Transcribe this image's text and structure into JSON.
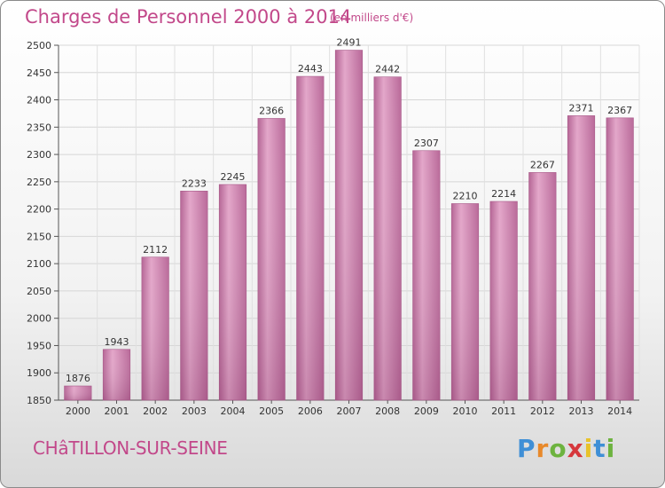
{
  "chart_data": {
    "type": "bar",
    "title": "Charges de Personnel 2000 à 2014",
    "unit_label": "(en milliers d'€)",
    "categories": [
      "2000",
      "2001",
      "2002",
      "2003",
      "2004",
      "2005",
      "2006",
      "2007",
      "2008",
      "2009",
      "2010",
      "2011",
      "2012",
      "2013",
      "2014"
    ],
    "values": [
      1876,
      1943,
      2112,
      2233,
      2245,
      2366,
      2443,
      2491,
      2442,
      2307,
      2210,
      2214,
      2267,
      2371,
      2367
    ],
    "ylim": [
      1850,
      2500
    ],
    "yticks": [
      1850,
      1900,
      1950,
      2000,
      2050,
      2100,
      2150,
      2200,
      2250,
      2300,
      2350,
      2400,
      2450,
      2500
    ],
    "grid": true,
    "bar_color": "#c879a8"
  },
  "footer": {
    "city": "CHâTILLON-SUR-SEINE",
    "logo_letters": [
      "P",
      "r",
      "o",
      "x",
      "i",
      "t",
      "i"
    ],
    "logo_colors": [
      "#3f8fd6",
      "#e8892a",
      "#6db33f",
      "#d6373c",
      "#e8c22a",
      "#3f8fd6",
      "#6db33f"
    ]
  }
}
